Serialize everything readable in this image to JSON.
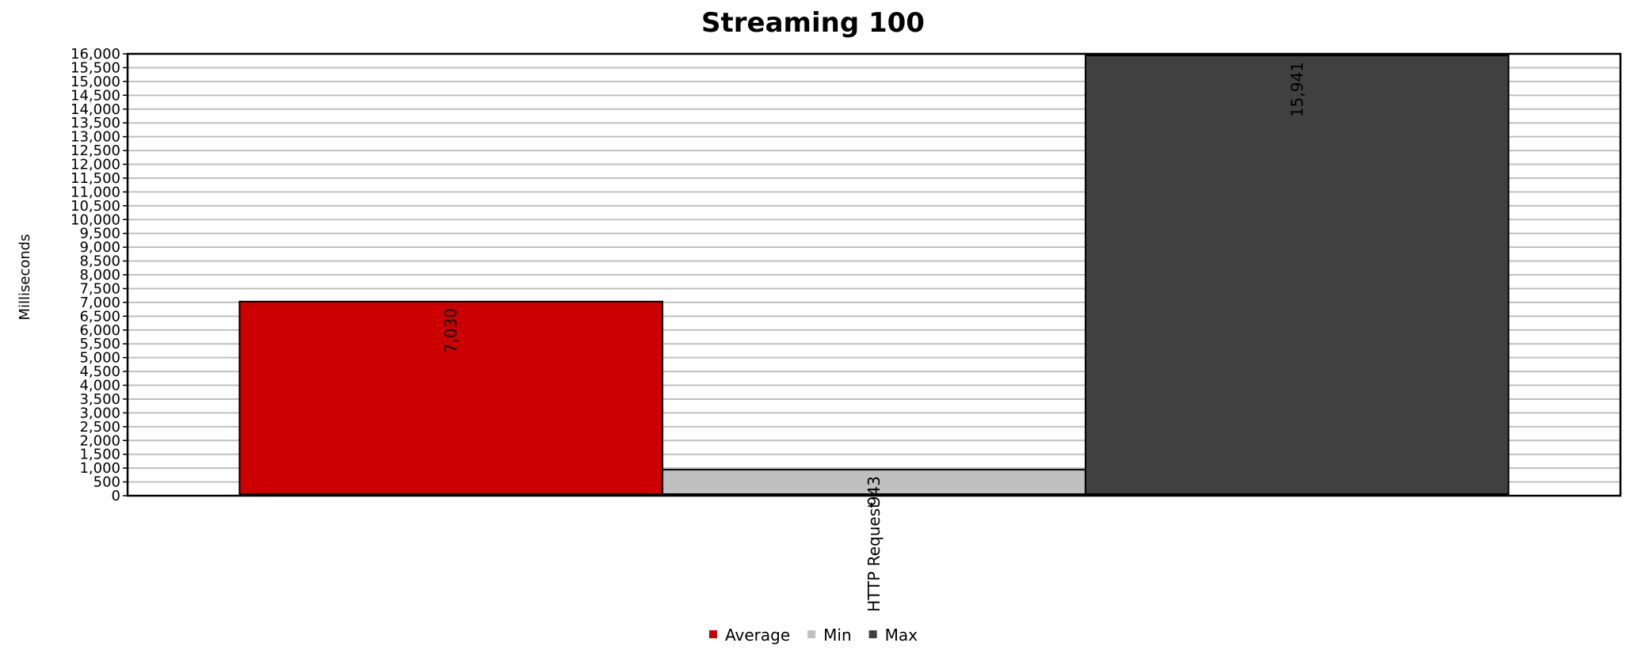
{
  "chart_data": {
    "type": "bar",
    "title": "Streaming 100",
    "xlabel": "",
    "ylabel": "Milliseconds",
    "categories": [
      "HTTP Request"
    ],
    "series": [
      {
        "name": "Average",
        "values": [
          7030
        ],
        "color": "#cc0000"
      },
      {
        "name": "Min",
        "values": [
          943
        ],
        "color": "#c0c0c0"
      },
      {
        "name": "Max",
        "values": [
          15941
        ],
        "color": "#404040"
      }
    ],
    "ylim": [
      0,
      16000
    ],
    "ytick_step": 500,
    "grid": true,
    "legend_position": "bottom",
    "data_labels": [
      "7,030",
      "943",
      "15,941"
    ]
  }
}
